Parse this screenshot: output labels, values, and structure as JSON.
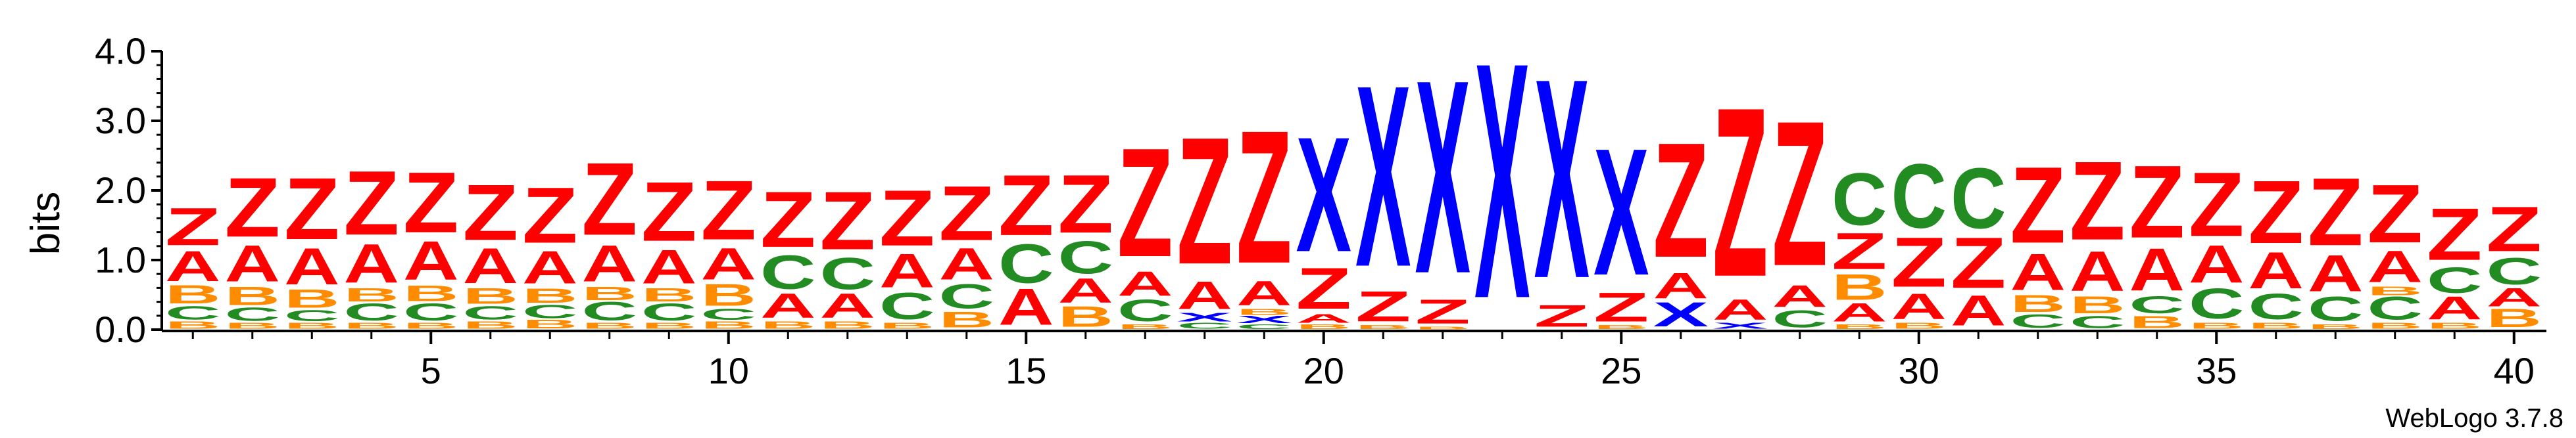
{
  "colors": {
    "Z": "#ff0000",
    "A": "#ff0000",
    "X": "#0000ff",
    "C": "#228b22",
    "B": "#ff8c00"
  },
  "chart_data": {
    "type": "sequence-logo",
    "ylabel": "bits",
    "ylim": [
      0,
      4.0
    ],
    "xlim": [
      1,
      40
    ],
    "yticks": [
      "0.0",
      "1.0",
      "2.0",
      "3.0",
      "4.0"
    ],
    "xticks": [
      "5",
      "10",
      "15",
      "20",
      "25",
      "30",
      "35",
      "40"
    ],
    "xtick_values": [
      5,
      10,
      15,
      20,
      25,
      30,
      35,
      40
    ],
    "ytick_values": [
      0,
      1,
      2,
      3,
      4
    ],
    "credit": "WebLogo 3.7.8",
    "positions": [
      {
        "pos": 1,
        "stack": [
          [
            "B",
            0.12
          ],
          [
            "C",
            0.22
          ],
          [
            "B",
            0.3
          ],
          [
            "A",
            0.5
          ],
          [
            "Z",
            0.62
          ]
        ]
      },
      {
        "pos": 2,
        "stack": [
          [
            "B",
            0.1
          ],
          [
            "C",
            0.22
          ],
          [
            "B",
            0.3
          ],
          [
            "A",
            0.6
          ],
          [
            "Z",
            0.98
          ]
        ]
      },
      {
        "pos": 3,
        "stack": [
          [
            "B",
            0.1
          ],
          [
            "C",
            0.18
          ],
          [
            "B",
            0.3
          ],
          [
            "A",
            0.6
          ],
          [
            "Z",
            1.02
          ]
        ]
      },
      {
        "pos": 4,
        "stack": [
          [
            "B",
            0.1
          ],
          [
            "C",
            0.28
          ],
          [
            "B",
            0.22
          ],
          [
            "A",
            0.64
          ],
          [
            "Z",
            1.06
          ]
        ]
      },
      {
        "pos": 5,
        "stack": [
          [
            "B",
            0.1
          ],
          [
            "C",
            0.28
          ],
          [
            "B",
            0.26
          ],
          [
            "A",
            0.64
          ],
          [
            "Z",
            1.0
          ]
        ]
      },
      {
        "pos": 6,
        "stack": [
          [
            "B",
            0.12
          ],
          [
            "C",
            0.22
          ],
          [
            "B",
            0.26
          ],
          [
            "A",
            0.58
          ],
          [
            "Z",
            0.92
          ]
        ]
      },
      {
        "pos": 7,
        "stack": [
          [
            "B",
            0.14
          ],
          [
            "C",
            0.22
          ],
          [
            "B",
            0.24
          ],
          [
            "A",
            0.54
          ],
          [
            "Z",
            0.92
          ]
        ]
      },
      {
        "pos": 8,
        "stack": [
          [
            "B",
            0.1
          ],
          [
            "C",
            0.3
          ],
          [
            "B",
            0.22
          ],
          [
            "A",
            0.6
          ],
          [
            "Z",
            1.2
          ]
        ]
      },
      {
        "pos": 9,
        "stack": [
          [
            "B",
            0.1
          ],
          [
            "C",
            0.28
          ],
          [
            "B",
            0.22
          ],
          [
            "A",
            0.56
          ],
          [
            "Z",
            0.98
          ]
        ]
      },
      {
        "pos": 10,
        "stack": [
          [
            "B",
            0.12
          ],
          [
            "C",
            0.18
          ],
          [
            "B",
            0.36
          ],
          [
            "A",
            0.52
          ],
          [
            "Z",
            0.98
          ]
        ]
      },
      {
        "pos": 11,
        "stack": [
          [
            "B",
            0.12
          ],
          [
            "A",
            0.4
          ],
          [
            "C",
            0.56
          ],
          [
            "Z",
            0.92
          ]
        ]
      },
      {
        "pos": 12,
        "stack": [
          [
            "B",
            0.12
          ],
          [
            "A",
            0.4
          ],
          [
            "C",
            0.52
          ],
          [
            "Z",
            0.96
          ]
        ]
      },
      {
        "pos": 13,
        "stack": [
          [
            "B",
            0.1
          ],
          [
            "C",
            0.44
          ],
          [
            "A",
            0.56
          ],
          [
            "Z",
            0.92
          ]
        ]
      },
      {
        "pos": 14,
        "stack": [
          [
            "B",
            0.26
          ],
          [
            "C",
            0.4
          ],
          [
            "A",
            0.52
          ],
          [
            "Z",
            0.9
          ]
        ]
      },
      {
        "pos": 15,
        "stack": [
          [
            "A",
            0.6
          ],
          [
            "C",
            0.64
          ],
          [
            "Z",
            1.0
          ]
        ]
      },
      {
        "pos": 16,
        "stack": [
          [
            "B",
            0.34
          ],
          [
            "A",
            0.4
          ],
          [
            "C",
            0.54
          ],
          [
            "Z",
            0.96
          ]
        ]
      },
      {
        "pos": 17,
        "stack": [
          [
            "B",
            0.08
          ],
          [
            "C",
            0.36
          ],
          [
            "A",
            0.4
          ],
          [
            "Z",
            1.8
          ]
        ]
      },
      {
        "pos": 18,
        "stack": [
          [
            "C",
            0.1
          ],
          [
            "X",
            0.14
          ],
          [
            "A",
            0.46
          ],
          [
            "Z",
            2.1
          ]
        ]
      },
      {
        "pos": 19,
        "stack": [
          [
            "C",
            0.08
          ],
          [
            "X",
            0.12
          ],
          [
            "B",
            0.1
          ],
          [
            "A",
            0.4
          ],
          [
            "Z",
            2.2
          ]
        ]
      },
      {
        "pos": 20,
        "stack": [
          [
            "B",
            0.08
          ],
          [
            "A",
            0.14
          ],
          [
            "Z",
            0.68
          ],
          [
            "X",
            1.9
          ]
        ]
      },
      {
        "pos": 21,
        "stack": [
          [
            "B",
            0.06
          ],
          [
            "Z",
            0.5
          ],
          [
            "X",
            3.0
          ]
        ]
      },
      {
        "pos": 22,
        "stack": [
          [
            "B",
            0.04
          ],
          [
            "Z",
            0.4
          ],
          [
            "X",
            3.2
          ]
        ]
      },
      {
        "pos": 23,
        "stack": [
          [
            "X",
            3.9
          ]
        ]
      },
      {
        "pos": 24,
        "stack": [
          [
            "Z",
            0.36
          ],
          [
            "X",
            3.3
          ]
        ]
      },
      {
        "pos": 25,
        "stack": [
          [
            "B",
            0.06
          ],
          [
            "Z",
            0.48
          ],
          [
            "X",
            2.1
          ]
        ]
      },
      {
        "pos": 26,
        "stack": [
          [
            "X",
            0.4
          ],
          [
            "A",
            0.42
          ],
          [
            "Z",
            1.9
          ]
        ]
      },
      {
        "pos": 27,
        "stack": [
          [
            "X",
            0.1
          ],
          [
            "A",
            0.34
          ],
          [
            "Z",
            2.8
          ]
        ]
      },
      {
        "pos": 28,
        "stack": [
          [
            "C",
            0.28
          ],
          [
            "A",
            0.36
          ],
          [
            "Z",
            2.4
          ]
        ]
      },
      {
        "pos": 29,
        "stack": [
          [
            "B",
            0.08
          ],
          [
            "A",
            0.3
          ],
          [
            "B",
            0.42
          ],
          [
            "Z",
            0.6
          ],
          [
            "C",
            0.86
          ]
        ]
      },
      {
        "pos": 30,
        "stack": [
          [
            "B",
            0.1
          ],
          [
            "A",
            0.42
          ],
          [
            "Z",
            0.82
          ],
          [
            "C",
            1.06
          ]
        ]
      },
      {
        "pos": 31,
        "stack": [
          [
            "A",
            0.5
          ],
          [
            "Z",
            0.84
          ],
          [
            "C",
            1.0
          ]
        ]
      },
      {
        "pos": 32,
        "stack": [
          [
            "C",
            0.22
          ],
          [
            "B",
            0.28
          ],
          [
            "A",
            0.6
          ],
          [
            "Z",
            1.26
          ]
        ]
      },
      {
        "pos": 33,
        "stack": [
          [
            "C",
            0.2
          ],
          [
            "B",
            0.28
          ],
          [
            "A",
            0.66
          ],
          [
            "Z",
            1.3
          ]
        ]
      },
      {
        "pos": 34,
        "stack": [
          [
            "B",
            0.2
          ],
          [
            "C",
            0.28
          ],
          [
            "A",
            0.7
          ],
          [
            "Z",
            1.2
          ]
        ]
      },
      {
        "pos": 35,
        "stack": [
          [
            "B",
            0.1
          ],
          [
            "C",
            0.5
          ],
          [
            "A",
            0.62
          ],
          [
            "Z",
            1.06
          ]
        ]
      },
      {
        "pos": 36,
        "stack": [
          [
            "B",
            0.1
          ],
          [
            "C",
            0.42
          ],
          [
            "A",
            0.6
          ],
          [
            "Z",
            1.04
          ]
        ]
      },
      {
        "pos": 37,
        "stack": [
          [
            "B",
            0.08
          ],
          [
            "C",
            0.4
          ],
          [
            "A",
            0.6
          ],
          [
            "Z",
            1.12
          ]
        ]
      },
      {
        "pos": 38,
        "stack": [
          [
            "B",
            0.1
          ],
          [
            "C",
            0.38
          ],
          [
            "B",
            0.14
          ],
          [
            "A",
            0.52
          ],
          [
            "Z",
            0.96
          ]
        ]
      },
      {
        "pos": 39,
        "stack": [
          [
            "B",
            0.1
          ],
          [
            "A",
            0.38
          ],
          [
            "C",
            0.42
          ],
          [
            "Z",
            0.86
          ]
        ]
      },
      {
        "pos": 40,
        "stack": [
          [
            "B",
            0.3
          ],
          [
            "A",
            0.3
          ],
          [
            "C",
            0.44
          ],
          [
            "Z",
            0.74
          ]
        ]
      }
    ]
  }
}
